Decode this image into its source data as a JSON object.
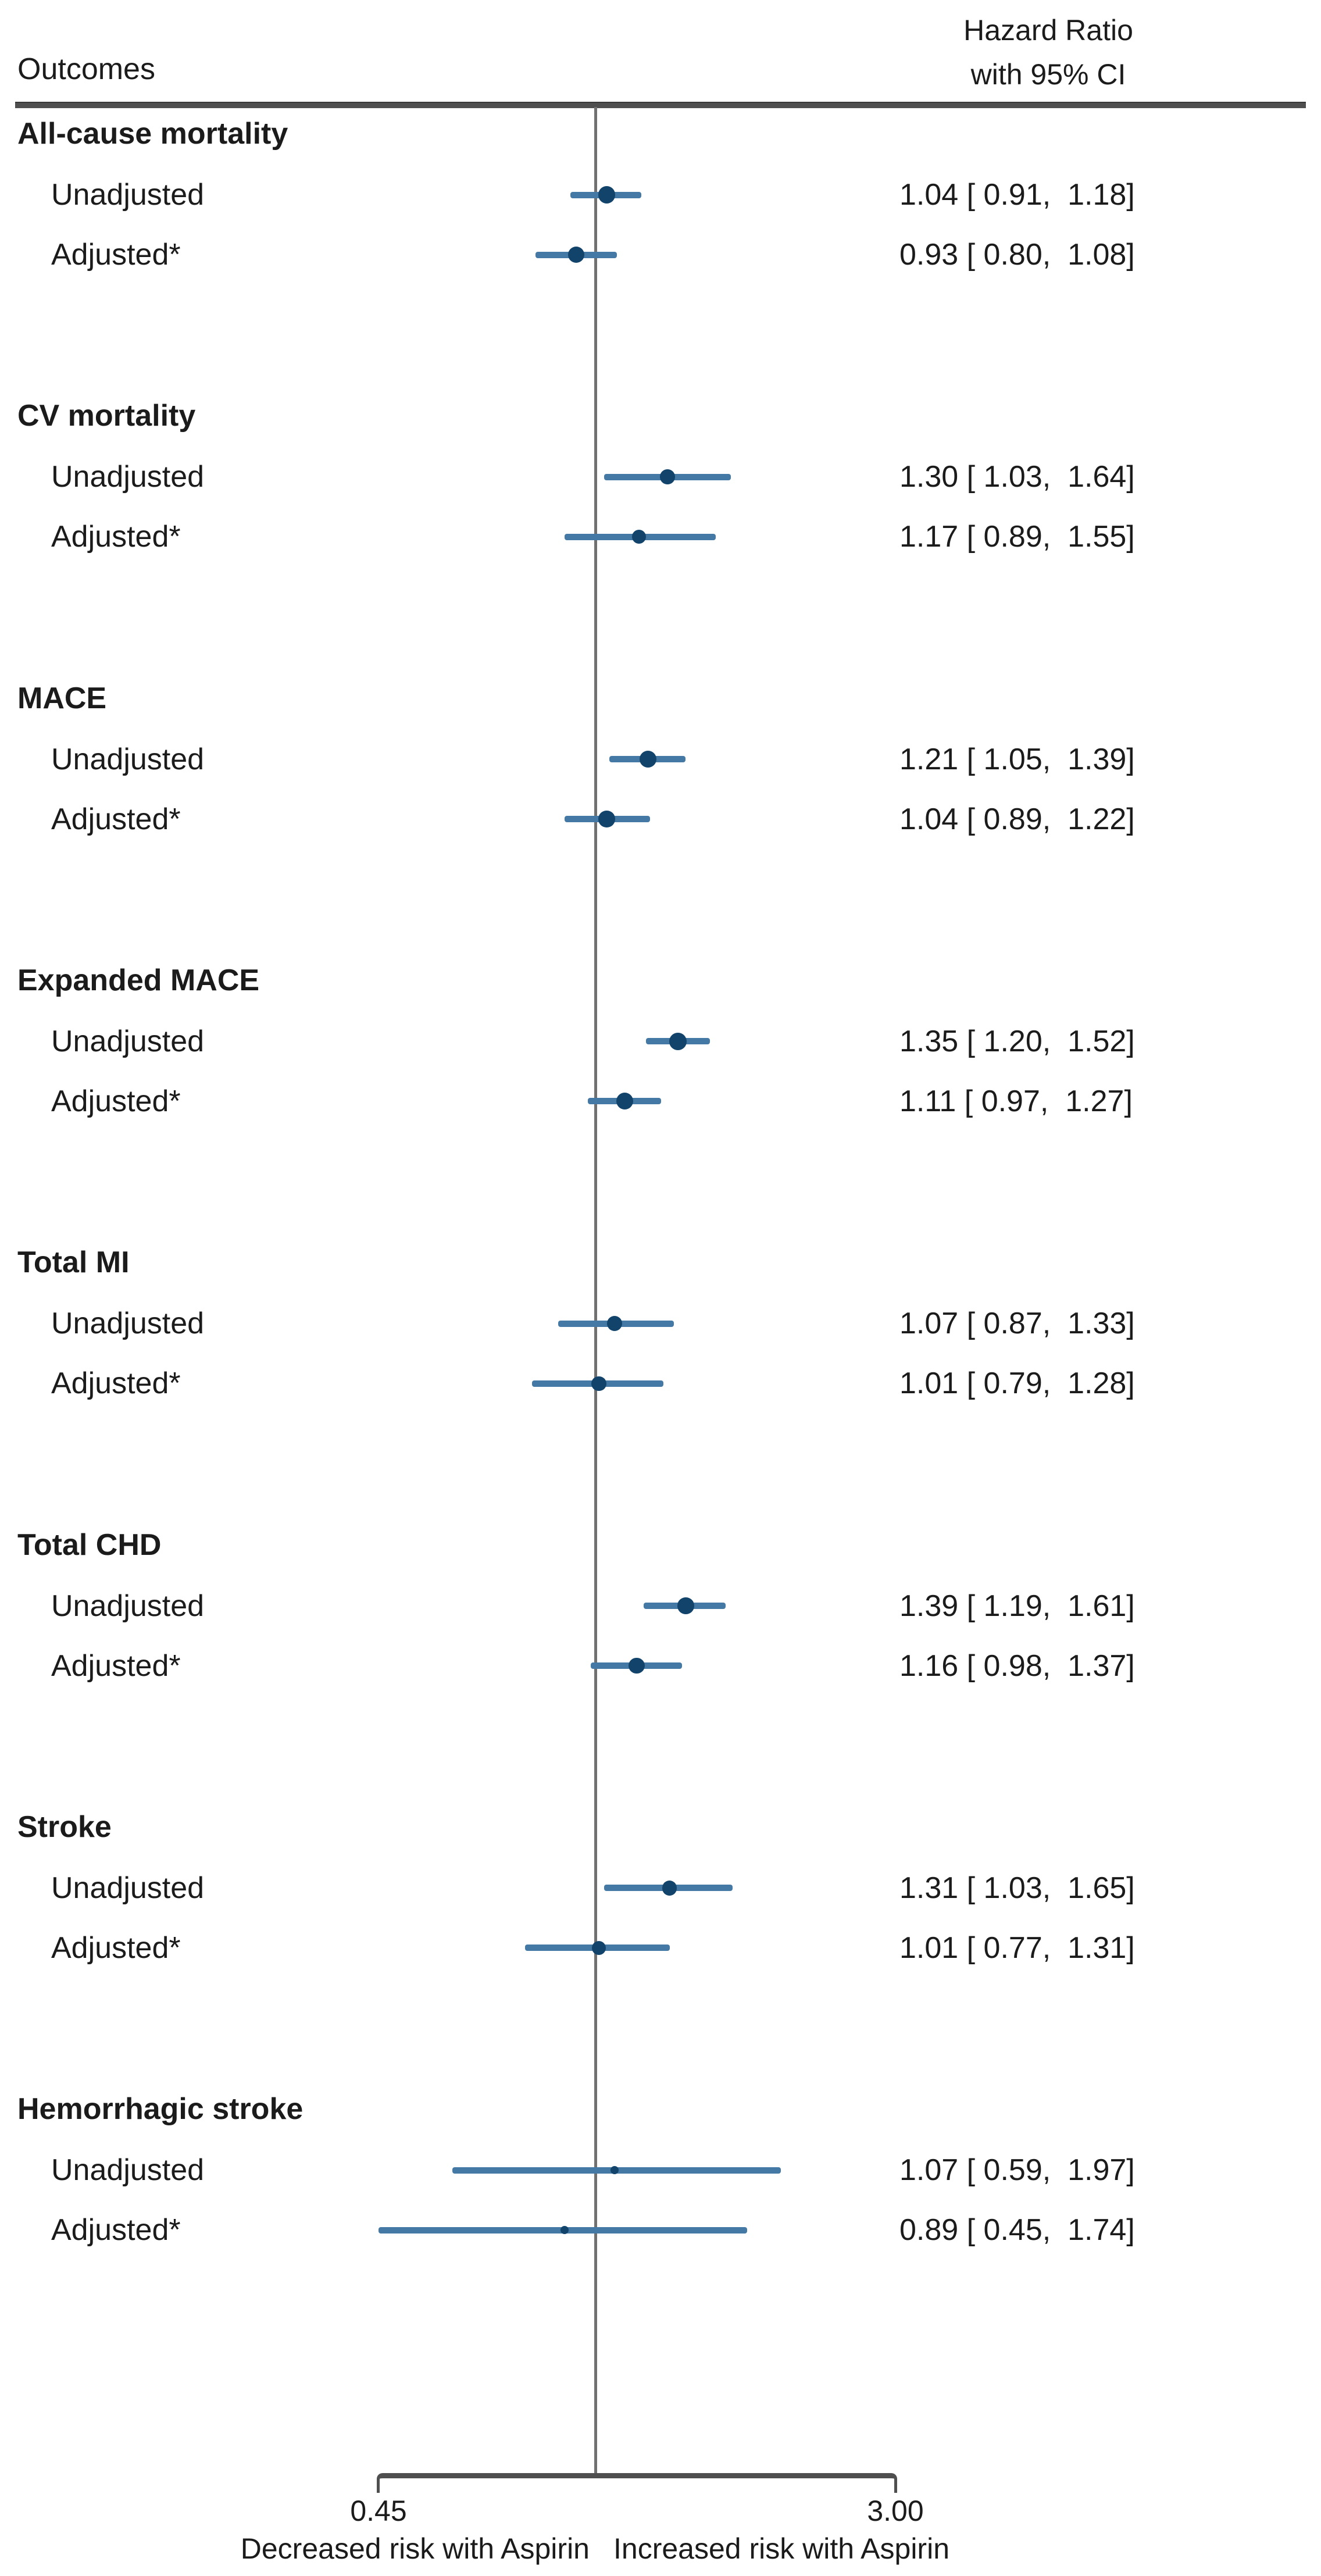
{
  "header": {
    "outcomes_label": "Outcomes",
    "effect_label_line1": "Hazard Ratio",
    "effect_label_line2": "with 95% CI"
  },
  "axis": {
    "tick_left": "0.45",
    "tick_right": "3.00",
    "footer_left": "Decreased risk with Aspirin",
    "footer_right": "Increased risk with Aspirin"
  },
  "colors": {
    "marker": "#12436b",
    "ci_line": "#4579a5",
    "rule": "#4f4f4f",
    "reference_line": "#707070",
    "text": "#1b1b1b"
  },
  "chart_data": {
    "type": "forest",
    "effect_measure": "Hazard Ratio with 95% CI",
    "x_scale": "log",
    "x_min": 0.45,
    "x_max": 3.0,
    "reference_line": 1.0,
    "x_ticks": [
      0.45,
      3.0
    ],
    "x_tick_labels": [
      "0.45",
      "3.00"
    ],
    "x_axis_left_annotation": "Decreased risk with Aspirin",
    "x_axis_right_annotation": "Increased risk with Aspirin",
    "groups": [
      {
        "outcome": "All-cause mortality",
        "rows": [
          {
            "label": "Unadjusted",
            "hr": 1.04,
            "ci_low": 0.91,
            "ci_high": 1.18,
            "display": "1.04 [ 0.91,  1.18]"
          },
          {
            "label": "Adjusted*",
            "hr": 0.93,
            "ci_low": 0.8,
            "ci_high": 1.08,
            "display": "0.93 [ 0.80,  1.08]"
          }
        ]
      },
      {
        "outcome": "CV mortality",
        "rows": [
          {
            "label": "Unadjusted",
            "hr": 1.3,
            "ci_low": 1.03,
            "ci_high": 1.64,
            "display": "1.30 [ 1.03,  1.64]"
          },
          {
            "label": "Adjusted*",
            "hr": 1.17,
            "ci_low": 0.89,
            "ci_high": 1.55,
            "display": "1.17 [ 0.89,  1.55]"
          }
        ]
      },
      {
        "outcome": "MACE",
        "rows": [
          {
            "label": "Unadjusted",
            "hr": 1.21,
            "ci_low": 1.05,
            "ci_high": 1.39,
            "display": "1.21 [ 1.05,  1.39]"
          },
          {
            "label": "Adjusted*",
            "hr": 1.04,
            "ci_low": 0.89,
            "ci_high": 1.22,
            "display": "1.04 [ 0.89,  1.22]"
          }
        ]
      },
      {
        "outcome": "Expanded MACE",
        "rows": [
          {
            "label": "Unadjusted",
            "hr": 1.35,
            "ci_low": 1.2,
            "ci_high": 1.52,
            "display": "1.35 [ 1.20,  1.52]"
          },
          {
            "label": "Adjusted*",
            "hr": 1.11,
            "ci_low": 0.97,
            "ci_high": 1.27,
            "display": "1.11 [ 0.97,  1.27]"
          }
        ]
      },
      {
        "outcome": "Total MI",
        "rows": [
          {
            "label": "Unadjusted",
            "hr": 1.07,
            "ci_low": 0.87,
            "ci_high": 1.33,
            "display": "1.07 [ 0.87,  1.33]"
          },
          {
            "label": "Adjusted*",
            "hr": 1.01,
            "ci_low": 0.79,
            "ci_high": 1.28,
            "display": "1.01 [ 0.79,  1.28]"
          }
        ]
      },
      {
        "outcome": "Total CHD",
        "rows": [
          {
            "label": "Unadjusted",
            "hr": 1.39,
            "ci_low": 1.19,
            "ci_high": 1.61,
            "display": "1.39 [ 1.19,  1.61]"
          },
          {
            "label": "Adjusted*",
            "hr": 1.16,
            "ci_low": 0.98,
            "ci_high": 1.37,
            "display": "1.16 [ 0.98,  1.37]"
          }
        ]
      },
      {
        "outcome": "Stroke",
        "rows": [
          {
            "label": "Unadjusted",
            "hr": 1.31,
            "ci_low": 1.03,
            "ci_high": 1.65,
            "display": "1.31 [ 1.03,  1.65]"
          },
          {
            "label": "Adjusted*",
            "hr": 1.01,
            "ci_low": 0.77,
            "ci_high": 1.31,
            "display": "1.01 [ 0.77,  1.31]"
          }
        ]
      },
      {
        "outcome": "Hemorrhagic stroke",
        "rows": [
          {
            "label": "Unadjusted",
            "hr": 1.07,
            "ci_low": 0.59,
            "ci_high": 1.97,
            "display": "1.07 [ 0.59,  1.97]"
          },
          {
            "label": "Adjusted*",
            "hr": 0.89,
            "ci_low": 0.45,
            "ci_high": 1.74,
            "display": "0.89 [ 0.45,  1.74]"
          }
        ]
      }
    ]
  }
}
